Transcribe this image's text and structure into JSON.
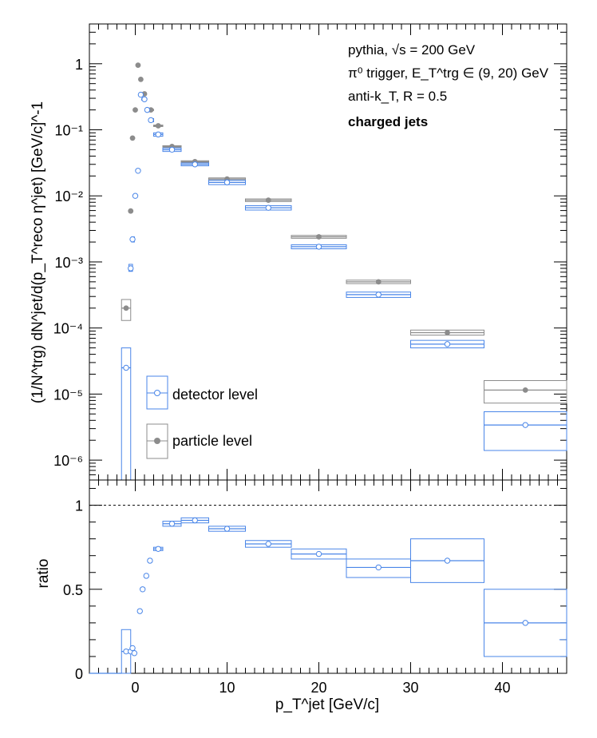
{
  "colors": {
    "detector": "#4a86e8",
    "particle": "#8c8c8c",
    "axis": "#000000"
  },
  "annotations": {
    "line1": "pythia, √s = 200 GeV",
    "line2": "π⁰ trigger, E_T^trg ∈ (9, 20) GeV",
    "line3": "anti-k_T, R = 0.5",
    "line4": "charged jets"
  },
  "legend": {
    "detector": "detector level",
    "particle": "particle level"
  },
  "axes": {
    "top_ylabel": "(1/N^trg) dN^jet/d(p_T^reco η^jet) [GeV/c]^-1",
    "bottom_ylabel": "ratio",
    "xlabel": "p_T^jet [GeV/c]"
  },
  "chart_data": [
    {
      "type": "scatter",
      "panel": "spectrum",
      "yscale": "log",
      "xlim": [
        -5,
        47
      ],
      "ylim": [
        5e-07,
        4
      ],
      "y_ticks": [
        "1",
        "10⁻¹",
        "10⁻²",
        "10⁻³",
        "10⁻⁴",
        "10⁻⁵",
        "10⁻⁶"
      ],
      "x_ticks": [
        0,
        10,
        20,
        30,
        40
      ],
      "series": [
        {
          "name": "detector level",
          "x": [
            -1,
            -0.5,
            -0.3,
            0,
            0.3,
            0.6,
            1.0,
            1.3,
            1.7,
            2.5,
            4.0,
            6.5,
            10,
            14.5,
            20,
            26.5,
            34,
            42.5
          ],
          "y": [
            2.5e-05,
            0.0008,
            0.0022,
            0.01,
            0.024,
            0.34,
            0.29,
            0.2,
            0.14,
            0.085,
            0.05,
            0.03,
            0.016,
            0.0066,
            0.0017,
            0.00032,
            5.7e-05,
            3.4e-06
          ],
          "bin_low": [
            -1.5,
            -0.7,
            -0.4,
            -0.1,
            0.1,
            0.4,
            0.7,
            1.1,
            1.5,
            2,
            3,
            5,
            8,
            12,
            17,
            23,
            30,
            38
          ],
          "bin_high": [
            -0.5,
            -0.3,
            -0.1,
            0.1,
            0.4,
            0.7,
            1.1,
            1.5,
            2,
            3,
            5,
            8,
            12,
            17,
            23,
            30,
            38,
            47
          ],
          "sys_low": [
            5e-07,
            0.00072,
            0.002,
            0.0095,
            0.023,
            0.33,
            0.28,
            0.19,
            0.132,
            0.08,
            0.047,
            0.0285,
            0.0148,
            0.0061,
            0.00158,
            0.00029,
            5e-05,
            1.4e-06
          ],
          "sys_high": [
            5e-05,
            0.00092,
            0.0024,
            0.0106,
            0.025,
            0.35,
            0.3,
            0.21,
            0.148,
            0.09,
            0.053,
            0.0315,
            0.0172,
            0.0071,
            0.00182,
            0.00035,
            6.5e-05,
            5.4e-06
          ]
        },
        {
          "name": "particle level",
          "x": [
            -1,
            -0.5,
            -0.3,
            0,
            0.3,
            0.6,
            1.0,
            1.3,
            1.7,
            2.5,
            4.0,
            6.5,
            10,
            14.5,
            20,
            26.5,
            34,
            42.5
          ],
          "y": [
            0.0002,
            0.0059,
            0.075,
            0.2,
            0.95,
            0.58,
            0.35,
            0.2,
            0.2,
            0.115,
            0.056,
            0.033,
            0.018,
            0.0086,
            0.0024,
            0.0005,
            8.5e-05,
            1.15e-05
          ],
          "bin_low": [
            -1.5,
            -0.7,
            -0.4,
            -0.1,
            0.1,
            0.4,
            0.7,
            1.1,
            1.5,
            2,
            3,
            5,
            8,
            12,
            17,
            23,
            30,
            38
          ],
          "bin_high": [
            -0.5,
            -0.3,
            -0.1,
            0.1,
            0.4,
            0.7,
            1.1,
            1.5,
            2,
            3,
            5,
            8,
            12,
            17,
            23,
            30,
            38,
            47
          ],
          "sys_low": [
            0.00013,
            0.0057,
            0.073,
            0.195,
            0.93,
            0.57,
            0.345,
            0.196,
            0.196,
            0.112,
            0.0545,
            0.032,
            0.0173,
            0.0082,
            0.00228,
            0.00047,
            7.8e-05,
            7.3e-06
          ],
          "sys_high": [
            0.00027,
            0.0061,
            0.077,
            0.205,
            0.97,
            0.59,
            0.355,
            0.204,
            0.204,
            0.118,
            0.0575,
            0.034,
            0.0187,
            0.009,
            0.00252,
            0.00053,
            9.3e-05,
            1.6e-05
          ]
        }
      ]
    },
    {
      "type": "scatter",
      "panel": "ratio",
      "xlim": [
        -5,
        47
      ],
      "ylim": [
        0,
        1.15
      ],
      "reference_line": 1,
      "y_ticks": [
        0,
        0.5,
        1
      ],
      "x_ticks": [
        0,
        10,
        20,
        30,
        40
      ],
      "series": [
        {
          "name": "ratio",
          "x": [
            -1,
            -0.5,
            -0.3,
            -0.1,
            0.5,
            0.8,
            1.2,
            1.6,
            2.5,
            4.0,
            6.5,
            10,
            14.5,
            20,
            26.5,
            34,
            42.5
          ],
          "y": [
            0.13,
            0.13,
            0.15,
            0.12,
            0.37,
            0.5,
            0.58,
            0.67,
            0.74,
            0.89,
            0.91,
            0.86,
            0.77,
            0.71,
            0.63,
            0.67,
            0.3
          ],
          "bin_low": [
            -1.5,
            -0.7,
            -0.4,
            -0.2,
            0.3,
            0.6,
            1.0,
            1.4,
            2,
            3,
            5,
            8,
            12,
            17,
            23,
            30,
            38
          ],
          "bin_high": [
            -0.5,
            -0.3,
            -0.2,
            0.0,
            0.6,
            1.0,
            1.4,
            1.8,
            3,
            5,
            8,
            12,
            17,
            23,
            30,
            38,
            47
          ],
          "sys_low": [
            0.0,
            0.12,
            0.14,
            0.11,
            0.36,
            0.49,
            0.57,
            0.66,
            0.73,
            0.875,
            0.895,
            0.845,
            0.75,
            0.68,
            0.57,
            0.54,
            0.1
          ],
          "sys_high": [
            0.26,
            0.14,
            0.16,
            0.13,
            0.38,
            0.51,
            0.59,
            0.68,
            0.75,
            0.905,
            0.925,
            0.875,
            0.79,
            0.74,
            0.68,
            0.8,
            0.5
          ]
        }
      ]
    }
  ]
}
